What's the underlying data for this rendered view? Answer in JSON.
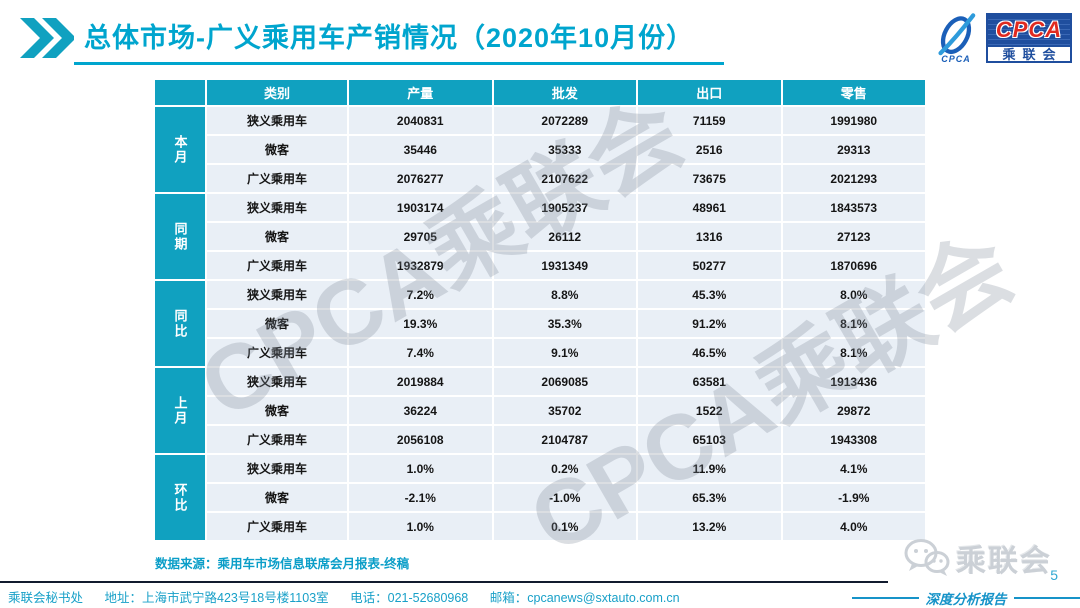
{
  "header": {
    "title": "总体市场-广义乘用车产销情况（2020年10月份）",
    "logo": {
      "cpca": "CPCA",
      "sub": "乘联会",
      "swoosh_small": "CPCA"
    }
  },
  "table": {
    "corner": "",
    "columns": [
      "类别",
      "产量",
      "批发",
      "出口",
      "零售"
    ],
    "groups": [
      {
        "label": "本月",
        "rows": [
          {
            "category": "狭义乘用车",
            "values": [
              "2040831",
              "2072289",
              "71159",
              "1991980"
            ]
          },
          {
            "category": "微客",
            "values": [
              "35446",
              "35333",
              "2516",
              "29313"
            ]
          },
          {
            "category": "广义乘用车",
            "values": [
              "2076277",
              "2107622",
              "73675",
              "2021293"
            ]
          }
        ]
      },
      {
        "label": "同期",
        "rows": [
          {
            "category": "狭义乘用车",
            "values": [
              "1903174",
              "1905237",
              "48961",
              "1843573"
            ]
          },
          {
            "category": "微客",
            "values": [
              "29705",
              "26112",
              "1316",
              "27123"
            ]
          },
          {
            "category": "广义乘用车",
            "values": [
              "1932879",
              "1931349",
              "50277",
              "1870696"
            ]
          }
        ]
      },
      {
        "label": "同比",
        "rows": [
          {
            "category": "狭义乘用车",
            "values": [
              "7.2%",
              "8.8%",
              "45.3%",
              "8.0%"
            ]
          },
          {
            "category": "微客",
            "values": [
              "19.3%",
              "35.3%",
              "91.2%",
              "8.1%"
            ]
          },
          {
            "category": "广义乘用车",
            "values": [
              "7.4%",
              "9.1%",
              "46.5%",
              "8.1%"
            ]
          }
        ]
      },
      {
        "label": "上月",
        "rows": [
          {
            "category": "狭义乘用车",
            "values": [
              "2019884",
              "2069085",
              "63581",
              "1913436"
            ]
          },
          {
            "category": "微客",
            "values": [
              "36224",
              "35702",
              "1522",
              "29872"
            ]
          },
          {
            "category": "广义乘用车",
            "values": [
              "2056108",
              "2104787",
              "65103",
              "1943308"
            ]
          }
        ]
      },
      {
        "label": "环比",
        "rows": [
          {
            "category": "狭义乘用车",
            "values": [
              "1.0%",
              "0.2%",
              "11.9%",
              "4.1%"
            ]
          },
          {
            "category": "微客",
            "values": [
              "-2.1%",
              "-1.0%",
              "65.3%",
              "-1.9%"
            ]
          },
          {
            "category": "广义乘用车",
            "values": [
              "1.0%",
              "0.1%",
              "13.2%",
              "4.0%"
            ]
          }
        ]
      }
    ]
  },
  "source_note": "数据来源：乘用车市场信息联席会月报表-终稿",
  "watermark": {
    "text": "CPCA乘联会"
  },
  "footer": {
    "secretariat": "乘联会秘书处",
    "address": "地址：上海市武宁路423号18号楼1103室",
    "phone": "电话：021-52680968",
    "email": "邮箱：cpcanews@sxtauto.com.cn",
    "page_number": "5",
    "report_label": "深度分析报告",
    "wechat_logo_text": "乘联会"
  },
  "colors": {
    "accent_teal": "#10A1C0",
    "title_cyan": "#00A5CE",
    "row_bg": "#E9EFF6",
    "logo_navy": "#1F4E9E",
    "logo_red": "#E02A20",
    "watermark_gray": "#7D8A96",
    "divider_dark": "#111B2E"
  }
}
